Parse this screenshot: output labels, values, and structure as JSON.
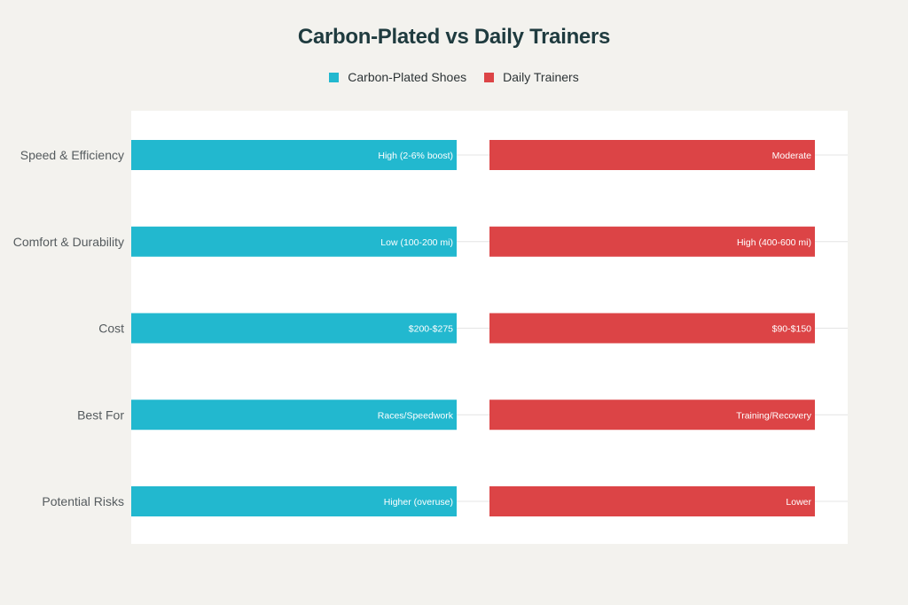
{
  "chart_data": {
    "type": "bar",
    "title": "Carbon-Plated vs Daily Trainers",
    "orientation": "horizontal",
    "categories": [
      "Speed & Efficiency",
      "Comfort & Durability",
      "Cost",
      "Best For",
      "Potential Risks"
    ],
    "series": [
      {
        "name": "Carbon-Plated Shoes",
        "color": "#22b8cf",
        "labels": [
          "High (2-6% boost)",
          "Low (100-200 mi)",
          "$200-$275",
          "Races/Speedwork",
          "Higher (overuse)"
        ]
      },
      {
        "name": "Daily Trainers",
        "color": "#dc4446",
        "labels": [
          "Moderate",
          "High (400-600 mi)",
          "$90-$150",
          "Training/Recovery",
          "Lower"
        ]
      }
    ],
    "legend_position": "top-center",
    "grid": true
  }
}
